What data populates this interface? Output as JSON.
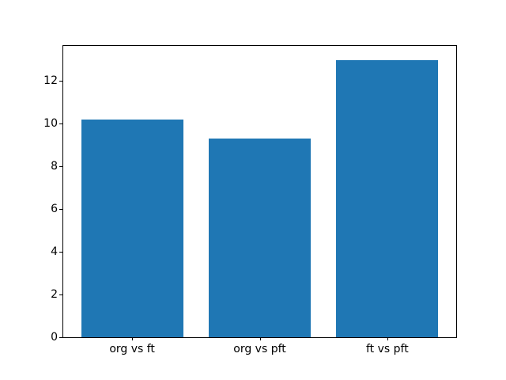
{
  "figure": {
    "background": "#ffffff",
    "title": ""
  },
  "chart_data": {
    "type": "bar",
    "categories": [
      "org vs ft",
      "org vs pft",
      "ft vs pft"
    ],
    "values": [
      10.2,
      9.3,
      13.0
    ],
    "title": "",
    "xlabel": "",
    "ylabel": "",
    "ylim": [
      0,
      13.65
    ],
    "xlim": [
      -0.54,
      2.54
    ],
    "yticks": [
      0,
      2,
      4,
      6,
      8,
      10,
      12
    ],
    "bar_width": 0.8,
    "bar_color": "#1f77b4",
    "axis_color": "#000000",
    "tick_label_color": "#000000",
    "grid": false,
    "legend": false
  }
}
